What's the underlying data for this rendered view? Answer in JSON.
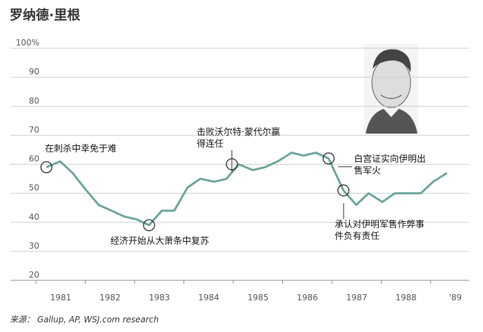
{
  "chart_data": {
    "type": "line",
    "title": "罗纳德·里根",
    "x": [
      1980.71,
      1980.99,
      1981.24,
      1981.52,
      1981.77,
      1982.03,
      1982.29,
      1982.54,
      1982.79,
      1983.05,
      1983.3,
      1983.57,
      1983.83,
      1984.11,
      1984.36,
      1984.61,
      1984.89,
      1985.14,
      1985.4,
      1985.68,
      1985.92,
      1986.17,
      1986.43,
      1986.73,
      1986.99,
      1987.24,
      1987.52,
      1987.77,
      1988.05,
      1988.3,
      1988.55,
      1988.83
    ],
    "series": [
      {
        "color": "#6aa39a",
        "values": [
          59,
          61,
          57,
          51,
          46,
          44,
          42,
          41,
          39,
          44,
          44,
          52,
          55,
          54,
          55,
          60,
          58,
          59,
          61,
          64,
          63,
          64,
          62,
          51,
          46,
          50,
          47,
          50,
          50,
          50,
          54,
          57
        ]
      }
    ],
    "xlim": [
      1980,
      1989.3
    ],
    "xticks": [
      1981,
      1982,
      1983,
      1984,
      1985,
      1986,
      1987,
      1988,
      {
        "value": 1989,
        "label": "'89"
      }
    ],
    "ylim": [
      20,
      100
    ],
    "yticks": [
      20,
      30,
      40,
      50,
      60,
      70,
      80,
      90,
      {
        "value": 100,
        "label": "100%"
      }
    ],
    "grid": true,
    "annotations": [
      {
        "lines": [
          "在刺杀中幸免于难"
        ]
      },
      {
        "lines": [
          "经济开始从大萧条中复苏"
        ]
      },
      {
        "lines": [
          "击败沃尔特·蒙代尔赢",
          "得连任"
        ]
      },
      {
        "lines": [
          "白宫证实向伊明出",
          "售军火"
        ]
      },
      {
        "lines": [
          "承认对伊明军售作弊事",
          "件负有责任"
        ]
      }
    ],
    "source": "来源： Gallup, AP, WSJ.com research"
  }
}
